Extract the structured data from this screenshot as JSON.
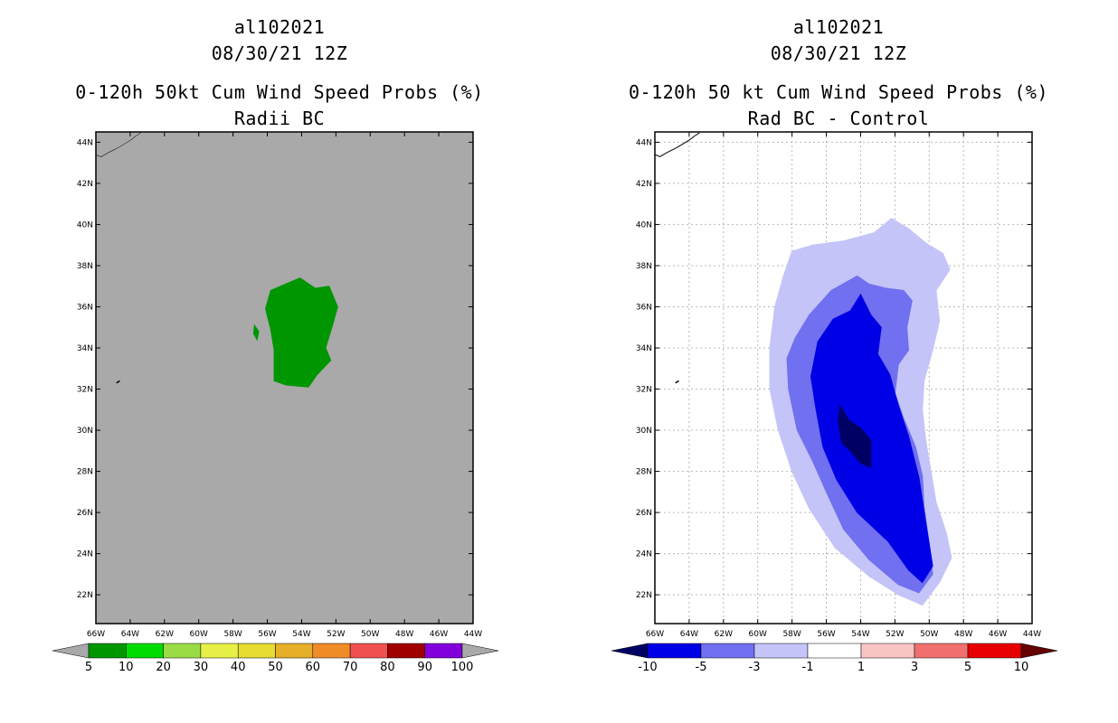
{
  "panels": [
    {
      "storm_id": "al102021",
      "datetime": "08/30/21 12Z",
      "product_title": "0-120h 50kt Cum Wind Speed Probs (%)",
      "subtitle": "Radii BC",
      "background_color": "#a9a9a9"
    },
    {
      "storm_id": "al102021",
      "datetime": "08/30/21 12Z",
      "product_title": "0-120h 50 kt Cum Wind Speed Probs (%)",
      "subtitle": "Rad BC - Control",
      "background_color": "#ffffff"
    }
  ],
  "chart_data": [
    {
      "type": "heatmap",
      "title": "0-120h 50kt Cum Wind Speed Probs (%) / Radii BC",
      "x_ticks": [
        "66W",
        "64W",
        "62W",
        "60W",
        "58W",
        "56W",
        "54W",
        "52W",
        "50W",
        "48W",
        "46W",
        "44W"
      ],
      "y_ticks": [
        "22N",
        "24N",
        "26N",
        "28N",
        "30N",
        "32N",
        "34N",
        "36N",
        "38N",
        "40N",
        "42N",
        "44N"
      ],
      "xlim": [
        -66,
        -44
      ],
      "ylim": [
        20.6,
        44.5
      ],
      "grid": false,
      "colorbar": {
        "labels": [
          "5",
          "10",
          "20",
          "30",
          "40",
          "50",
          "60",
          "70",
          "80",
          "90",
          "100"
        ],
        "colors": [
          "#009600",
          "#00dc00",
          "#9bdc46",
          "#e6f046",
          "#e6dc32",
          "#e6af28",
          "#f08c28",
          "#f05050",
          "#a00000",
          "#8200dc"
        ],
        "under_color": "#a9a9a9",
        "over_color": "#a9a9a9"
      },
      "contours": [
        {
          "level": "5-10",
          "color": "#009600",
          "points": [
            [
              -55.8,
              36.8
            ],
            [
              -54.1,
              37.4
            ],
            [
              -53.2,
              36.9
            ],
            [
              -52.4,
              37.0
            ],
            [
              -51.9,
              36.0
            ],
            [
              -52.2,
              35.1
            ],
            [
              -52.6,
              34.0
            ],
            [
              -52.3,
              33.4
            ],
            [
              -53.1,
              32.7
            ],
            [
              -53.6,
              32.1
            ],
            [
              -54.9,
              32.2
            ],
            [
              -55.6,
              32.4
            ],
            [
              -55.6,
              33.9
            ],
            [
              -55.8,
              34.9
            ],
            [
              -56.1,
              35.9
            ]
          ]
        },
        {
          "level": "5-10",
          "color": "#009600",
          "points": [
            [
              -56.75,
              35.1
            ],
            [
              -56.5,
              34.8
            ],
            [
              -56.6,
              34.4
            ],
            [
              -56.8,
              34.7
            ]
          ]
        }
      ]
    },
    {
      "type": "heatmap",
      "title": "0-120h 50 kt Cum Wind Speed Probs (%) / Rad BC - Control",
      "x_ticks": [
        "66W",
        "64W",
        "62W",
        "60W",
        "58W",
        "56W",
        "54W",
        "52W",
        "50W",
        "48W",
        "46W",
        "44W"
      ],
      "y_ticks": [
        "22N",
        "24N",
        "26N",
        "28N",
        "30N",
        "32N",
        "34N",
        "36N",
        "38N",
        "40N",
        "42N",
        "44N"
      ],
      "xlim": [
        -66,
        -44
      ],
      "ylim": [
        20.6,
        44.5
      ],
      "grid": true,
      "colorbar": {
        "labels": [
          "-10",
          "-5",
          "-3",
          "-1",
          "1",
          "3",
          "5",
          "10"
        ],
        "colors": [
          "#0000e6",
          "#7070f0",
          "#c4c4f8",
          "#ffffff",
          "#f8c4c4",
          "#f07070",
          "#e60000"
        ],
        "under_color": "#000064",
        "over_color": "#640000"
      },
      "contours": [
        {
          "level": "-3 to -1",
          "color": "#c4c4f8",
          "points": [
            [
              -58.5,
              37.5
            ],
            [
              -58.0,
              38.7
            ],
            [
              -56.8,
              39.0
            ],
            [
              -55.0,
              39.2
            ],
            [
              -53.2,
              39.6
            ],
            [
              -52.2,
              40.3
            ],
            [
              -51.2,
              39.8
            ],
            [
              -50.2,
              39.1
            ],
            [
              -49.2,
              38.6
            ],
            [
              -48.8,
              37.8
            ],
            [
              -49.6,
              36.8
            ],
            [
              -49.4,
              35.3
            ],
            [
              -49.8,
              33.9
            ],
            [
              -50.3,
              32.4
            ],
            [
              -50.4,
              31.0
            ],
            [
              -50.2,
              29.5
            ],
            [
              -49.9,
              28.0
            ],
            [
              -49.6,
              26.5
            ],
            [
              -49.0,
              25.0
            ],
            [
              -48.7,
              23.8
            ],
            [
              -49.4,
              22.6
            ],
            [
              -50.4,
              21.5
            ],
            [
              -51.8,
              22.0
            ],
            [
              -53.5,
              22.9
            ],
            [
              -55.5,
              24.3
            ],
            [
              -57.0,
              26.2
            ],
            [
              -58.0,
              28.0
            ],
            [
              -58.8,
              30.0
            ],
            [
              -59.3,
              32.0
            ],
            [
              -59.3,
              34.0
            ],
            [
              -59.0,
              36.0
            ]
          ]
        },
        {
          "level": "-5 to -3",
          "color": "#7070f0",
          "points": [
            [
              -57.0,
              35.6
            ],
            [
              -55.7,
              36.8
            ],
            [
              -54.2,
              37.5
            ],
            [
              -53.5,
              37.1
            ],
            [
              -52.5,
              36.9
            ],
            [
              -51.5,
              36.8
            ],
            [
              -51.0,
              36.3
            ],
            [
              -51.3,
              35.0
            ],
            [
              -51.2,
              33.9
            ],
            [
              -51.8,
              33.2
            ],
            [
              -52.0,
              31.8
            ],
            [
              -51.5,
              30.6
            ],
            [
              -50.8,
              29.2
            ],
            [
              -50.4,
              27.8
            ],
            [
              -50.3,
              26.3
            ],
            [
              -50.0,
              24.5
            ],
            [
              -49.8,
              23.0
            ],
            [
              -50.6,
              22.1
            ],
            [
              -51.8,
              22.5
            ],
            [
              -53.5,
              23.7
            ],
            [
              -55.0,
              25.2
            ],
            [
              -56.0,
              27.0
            ],
            [
              -56.8,
              28.5
            ],
            [
              -57.7,
              30.0
            ],
            [
              -58.2,
              32.0
            ],
            [
              -58.3,
              33.5
            ],
            [
              -57.8,
              34.5
            ]
          ]
        },
        {
          "level": "-10 to -5",
          "color": "#0000e6",
          "points": [
            [
              -56.5,
              34.3
            ],
            [
              -55.6,
              35.4
            ],
            [
              -54.6,
              35.8
            ],
            [
              -54.0,
              36.6
            ],
            [
              -53.4,
              35.6
            ],
            [
              -52.8,
              35.0
            ],
            [
              -53.0,
              33.7
            ],
            [
              -52.3,
              32.7
            ],
            [
              -51.8,
              31.2
            ],
            [
              -51.2,
              29.7
            ],
            [
              -50.6,
              27.7
            ],
            [
              -50.2,
              25.5
            ],
            [
              -49.8,
              23.4
            ],
            [
              -50.4,
              22.6
            ],
            [
              -51.2,
              23.2
            ],
            [
              -52.4,
              24.6
            ],
            [
              -54.2,
              26.0
            ],
            [
              -55.4,
              27.6
            ],
            [
              -56.2,
              29.2
            ],
            [
              -56.6,
              31.0
            ],
            [
              -56.9,
              32.6
            ]
          ]
        },
        {
          "level": "< -10",
          "color": "#000064",
          "points": [
            [
              -55.2,
              31.2
            ],
            [
              -54.7,
              30.5
            ],
            [
              -54.0,
              30.1
            ],
            [
              -53.4,
              29.5
            ],
            [
              -53.4,
              28.2
            ],
            [
              -54.0,
              28.4
            ],
            [
              -54.6,
              29.0
            ],
            [
              -55.1,
              29.4
            ],
            [
              -55.3,
              30.4
            ]
          ]
        }
      ]
    }
  ]
}
